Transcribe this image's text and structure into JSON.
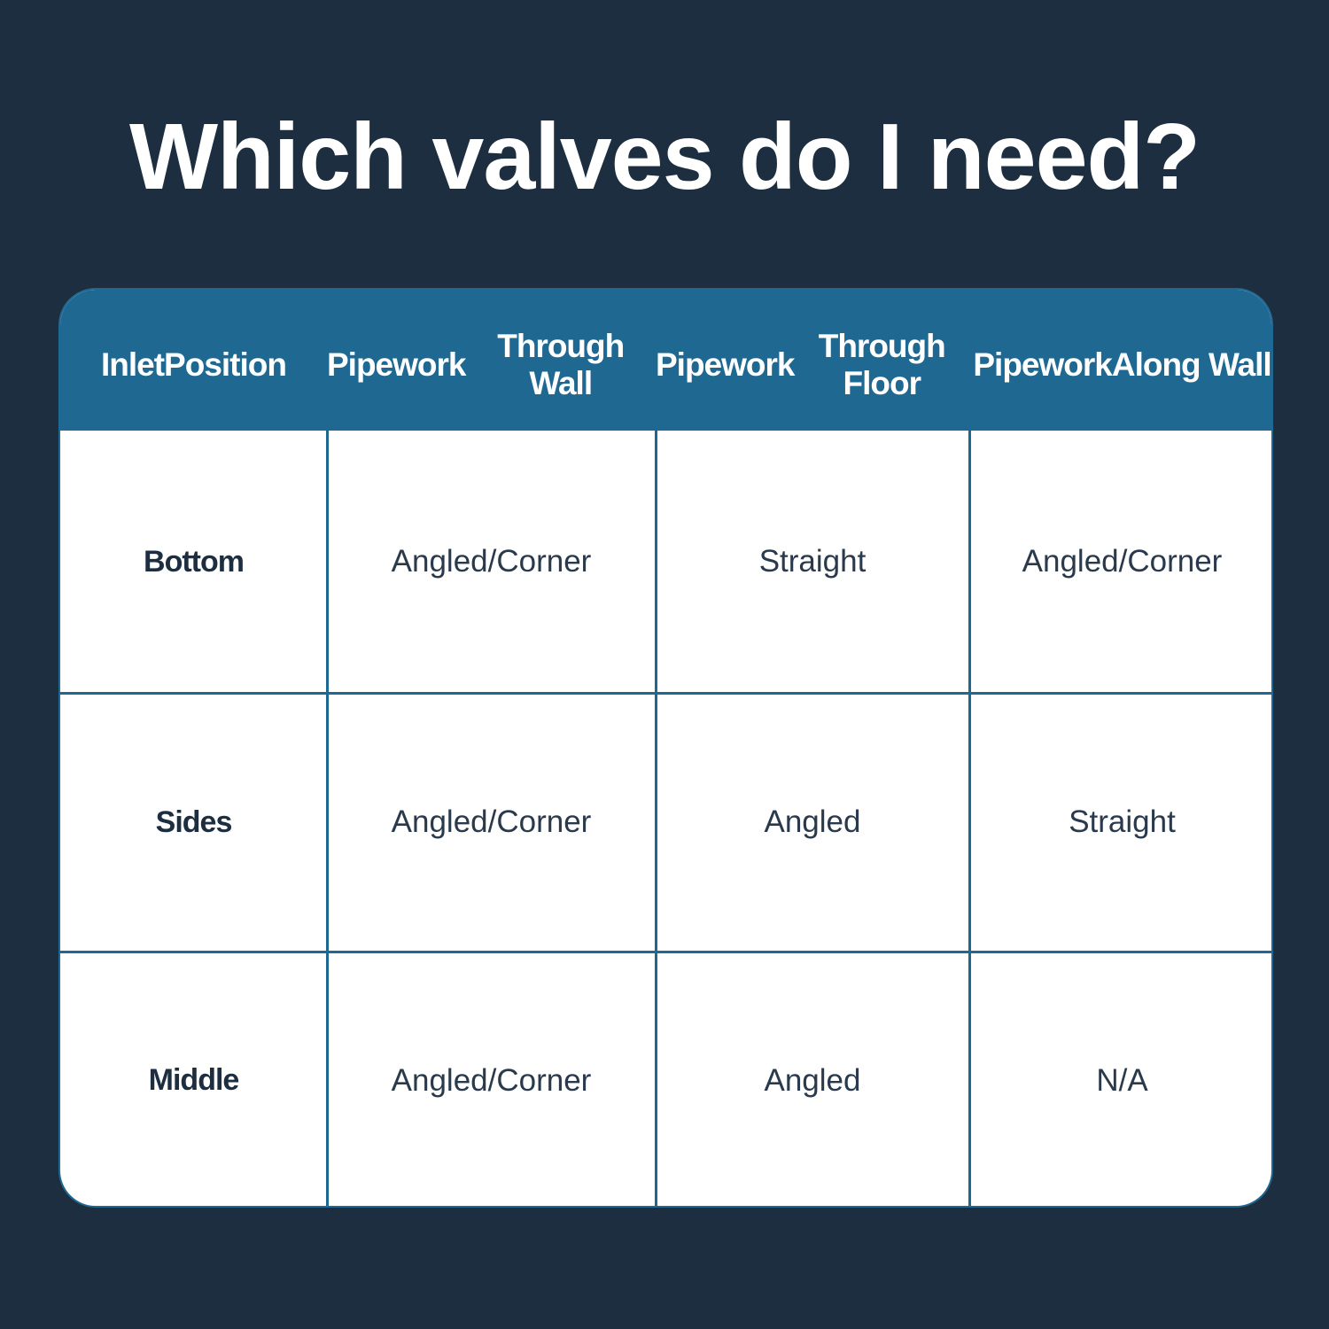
{
  "title": "Which valves do I need?",
  "colors": {
    "background": "#1e2e41",
    "header": "#1f6892",
    "cell": "#ffffff"
  },
  "table": {
    "headers": [
      [
        "Inlet",
        "Position"
      ],
      [
        "Pipework",
        "Through Wall"
      ],
      [
        "Pipework",
        "Through Floor"
      ],
      [
        "Pipework",
        "Along Wall"
      ]
    ],
    "rows": [
      {
        "label": "Bottom",
        "values": [
          "Angled/Corner",
          "Straight",
          "Angled/Corner"
        ]
      },
      {
        "label": "Sides",
        "values": [
          "Angled/Corner",
          "Angled",
          "Straight"
        ]
      },
      {
        "label": "Middle",
        "values": [
          "Angled/Corner",
          "Angled",
          "N/A"
        ]
      }
    ]
  }
}
